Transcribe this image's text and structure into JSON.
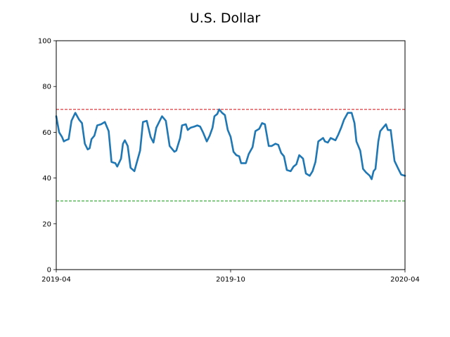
{
  "chart_data": {
    "type": "line",
    "title": "U.S. Dollar",
    "xlabel": "",
    "ylabel": "",
    "x_range": [
      "2019-04-01",
      "2020-04-01"
    ],
    "ylim": [
      0,
      100
    ],
    "y_ticks": [
      0,
      20,
      40,
      60,
      80,
      100
    ],
    "x_ticks": [
      {
        "date": "2019-04-01",
        "label": "2019-04"
      },
      {
        "date": "2019-10-01",
        "label": "2019-10"
      },
      {
        "date": "2020-04-01",
        "label": "2020-04"
      }
    ],
    "grid": false,
    "reference_lines": [
      {
        "value": 70,
        "color": "#d62728",
        "style": "dashed"
      },
      {
        "value": 30,
        "color": "#2ca02c",
        "style": "dashed"
      }
    ],
    "series": [
      {
        "color": "#1f77b4",
        "points": [
          [
            "2019-04-01",
            67
          ],
          [
            "2019-04-04",
            60
          ],
          [
            "2019-04-07",
            58
          ],
          [
            "2019-04-09",
            56
          ],
          [
            "2019-04-11",
            56.5
          ],
          [
            "2019-04-14",
            57
          ],
          [
            "2019-04-17",
            65
          ],
          [
            "2019-04-21",
            68.5
          ],
          [
            "2019-04-25",
            65.5
          ],
          [
            "2019-04-28",
            64
          ],
          [
            "2019-05-01",
            55
          ],
          [
            "2019-05-04",
            52.5
          ],
          [
            "2019-05-06",
            53
          ],
          [
            "2019-05-08",
            57
          ],
          [
            "2019-05-11",
            58.5
          ],
          [
            "2019-05-14",
            63
          ],
          [
            "2019-05-18",
            63.5
          ],
          [
            "2019-05-22",
            64.5
          ],
          [
            "2019-05-26",
            60.5
          ],
          [
            "2019-05-29",
            47
          ],
          [
            "2019-06-02",
            46.5
          ],
          [
            "2019-06-04",
            45
          ],
          [
            "2019-06-08",
            48.5
          ],
          [
            "2019-06-10",
            55
          ],
          [
            "2019-06-12",
            56.5
          ],
          [
            "2019-06-15",
            54
          ],
          [
            "2019-06-18",
            44.5
          ],
          [
            "2019-06-22",
            43
          ],
          [
            "2019-06-25",
            47.5
          ],
          [
            "2019-06-28",
            52
          ],
          [
            "2019-07-01",
            64.5
          ],
          [
            "2019-07-05",
            65
          ],
          [
            "2019-07-09",
            58
          ],
          [
            "2019-07-12",
            55.5
          ],
          [
            "2019-07-15",
            62
          ],
          [
            "2019-07-18",
            64.5
          ],
          [
            "2019-07-21",
            67
          ],
          [
            "2019-07-25",
            65
          ],
          [
            "2019-07-29",
            54
          ],
          [
            "2019-08-03",
            51.5
          ],
          [
            "2019-08-05",
            52
          ],
          [
            "2019-08-09",
            57.5
          ],
          [
            "2019-08-11",
            63
          ],
          [
            "2019-08-15",
            63.5
          ],
          [
            "2019-08-17",
            61
          ],
          [
            "2019-08-20",
            62
          ],
          [
            "2019-08-24",
            62.5
          ],
          [
            "2019-08-27",
            63
          ],
          [
            "2019-08-30",
            62.5
          ],
          [
            "2019-09-02",
            60
          ],
          [
            "2019-09-06",
            56
          ],
          [
            "2019-09-09",
            58.5
          ],
          [
            "2019-09-12",
            62
          ],
          [
            "2019-09-14",
            67
          ],
          [
            "2019-09-17",
            68
          ],
          [
            "2019-09-19",
            70
          ],
          [
            "2019-09-22",
            68.5
          ],
          [
            "2019-09-25",
            67.5
          ],
          [
            "2019-09-28",
            61
          ],
          [
            "2019-10-01",
            58
          ],
          [
            "2019-10-04",
            51.5
          ],
          [
            "2019-10-07",
            50
          ],
          [
            "2019-10-10",
            49.5
          ],
          [
            "2019-10-12",
            46.5
          ],
          [
            "2019-10-17",
            46.5
          ],
          [
            "2019-10-20",
            50.5
          ],
          [
            "2019-10-24",
            53.5
          ],
          [
            "2019-10-27",
            60.5
          ],
          [
            "2019-10-31",
            61.5
          ],
          [
            "2019-11-03",
            64
          ],
          [
            "2019-11-06",
            63.5
          ],
          [
            "2019-11-10",
            54
          ],
          [
            "2019-11-13",
            54
          ],
          [
            "2019-11-17",
            55
          ],
          [
            "2019-11-20",
            54.5
          ],
          [
            "2019-11-23",
            51
          ],
          [
            "2019-11-26",
            49.5
          ],
          [
            "2019-11-29",
            43.5
          ],
          [
            "2019-12-03",
            43
          ],
          [
            "2019-12-06",
            45
          ],
          [
            "2019-12-09",
            46
          ],
          [
            "2019-12-12",
            50
          ],
          [
            "2019-12-16",
            48.5
          ],
          [
            "2019-12-19",
            42
          ],
          [
            "2019-12-23",
            41
          ],
          [
            "2019-12-26",
            43
          ],
          [
            "2019-12-29",
            47
          ],
          [
            "2020-01-01",
            56
          ],
          [
            "2020-01-06",
            57.5
          ],
          [
            "2020-01-08",
            56
          ],
          [
            "2020-01-11",
            55.5
          ],
          [
            "2020-01-14",
            57.5
          ],
          [
            "2020-01-19",
            56.5
          ],
          [
            "2020-01-22",
            59
          ],
          [
            "2020-01-25",
            62
          ],
          [
            "2020-01-28",
            65.5
          ],
          [
            "2020-02-01",
            68.5
          ],
          [
            "2020-02-05",
            68.5
          ],
          [
            "2020-02-08",
            64
          ],
          [
            "2020-02-10",
            56
          ],
          [
            "2020-02-14",
            52
          ],
          [
            "2020-02-17",
            44
          ],
          [
            "2020-02-20",
            42.5
          ],
          [
            "2020-02-24",
            41
          ],
          [
            "2020-02-26",
            39.5
          ],
          [
            "2020-02-28",
            43
          ],
          [
            "2020-03-01",
            44
          ],
          [
            "2020-03-04",
            56
          ],
          [
            "2020-03-06",
            60.5
          ],
          [
            "2020-03-09",
            62
          ],
          [
            "2020-03-12",
            63.5
          ],
          [
            "2020-03-14",
            61
          ],
          [
            "2020-03-17",
            61
          ],
          [
            "2020-03-21",
            47.5
          ],
          [
            "2020-03-25",
            44
          ],
          [
            "2020-03-28",
            41.5
          ],
          [
            "2020-04-01",
            41
          ]
        ]
      }
    ]
  }
}
